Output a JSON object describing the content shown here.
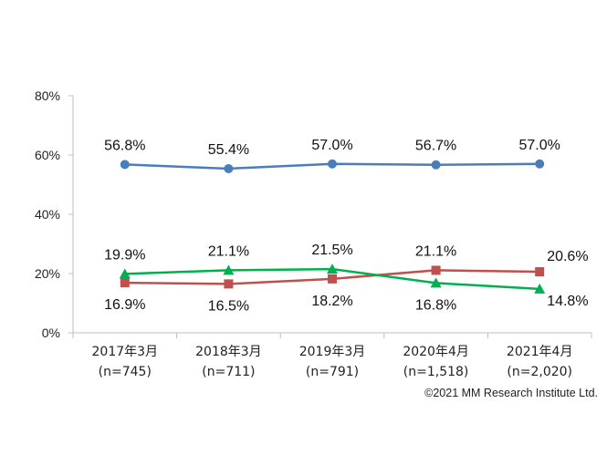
{
  "chart_data": {
    "type": "line",
    "categories": [
      "2017年3月",
      "2018年3月",
      "2019年3月",
      "2020年4月",
      "2021年4月"
    ],
    "category_sublabels": [
      "(n=745)",
      "(n=711)",
      "(n=791)",
      "(n=1,518)",
      "(n=2,020)"
    ],
    "ylim": [
      0,
      80
    ],
    "yticks": [
      0,
      20,
      40,
      60,
      80
    ],
    "ytick_labels": [
      "0%",
      "20%",
      "40%",
      "60%",
      "80%"
    ],
    "grid": false,
    "series": [
      {
        "values": [
          56.8,
          55.4,
          57.0,
          56.7,
          57.0
        ],
        "labels": [
          "56.8%",
          "55.4%",
          "57.0%",
          "56.7%",
          "57.0%"
        ],
        "color": "#4a7ebb",
        "marker": "circle",
        "label_position": [
          "above",
          "above",
          "above",
          "above",
          "above"
        ]
      },
      {
        "values": [
          16.9,
          16.5,
          18.2,
          21.1,
          20.6
        ],
        "labels": [
          "16.9%",
          "16.5%",
          "18.2%",
          "21.1%",
          "20.6%"
        ],
        "color": "#c0504d",
        "marker": "square",
        "label_position": [
          "below",
          "below",
          "below",
          "above",
          "above-right"
        ]
      },
      {
        "values": [
          19.9,
          21.1,
          21.5,
          16.8,
          14.8
        ],
        "labels": [
          "19.9%",
          "21.1%",
          "21.5%",
          "16.8%",
          "14.8%"
        ],
        "color": "#00b050",
        "marker": "triangle",
        "label_position": [
          "above",
          "above",
          "above",
          "below",
          "below-right"
        ]
      }
    ]
  },
  "copyright": "©2021 MM Research Institute Ltd."
}
